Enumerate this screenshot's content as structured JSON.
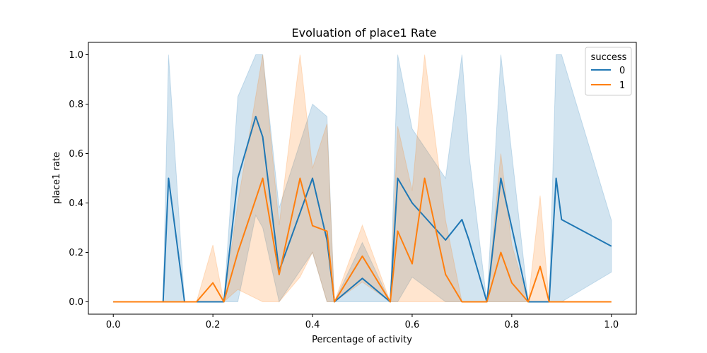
{
  "chart_data": {
    "type": "line",
    "title": "Evoluation of place1 Rate",
    "xlabel": "Percentage of activity",
    "ylabel": "place1 rate",
    "xlim": [
      -0.05,
      1.05
    ],
    "ylim": [
      -0.05,
      1.05
    ],
    "xticks": [
      0.0,
      0.2,
      0.4,
      0.6,
      0.8,
      1.0
    ],
    "xtick_labels": [
      "0.0",
      "0.2",
      "0.4",
      "0.6",
      "0.8",
      "1.0"
    ],
    "yticks": [
      0.0,
      0.2,
      0.4,
      0.6,
      0.8,
      1.0
    ],
    "ytick_labels": [
      "0.0",
      "0.2",
      "0.4",
      "0.6",
      "0.8",
      "1.0"
    ],
    "grid": false,
    "legend": {
      "title": "success",
      "placement": "upper right"
    },
    "series": [
      {
        "name": "0",
        "color": "#1f77b4",
        "x": [
          0.0,
          0.1,
          0.111,
          0.143,
          0.2,
          0.222,
          0.25,
          0.286,
          0.3,
          0.333,
          0.4,
          0.429,
          0.444,
          0.5,
          0.556,
          0.571,
          0.6,
          0.667,
          0.7,
          0.714,
          0.75,
          0.778,
          0.8,
          0.833,
          0.857,
          0.875,
          0.889,
          0.9,
          1.0
        ],
        "y": [
          0.0,
          0.0,
          0.5,
          0.0,
          0.0,
          0.0,
          0.5,
          0.75,
          0.667,
          0.125,
          0.5,
          0.25,
          0.0,
          0.095,
          0.0,
          0.5,
          0.4,
          0.25,
          0.333,
          0.25,
          0.0,
          0.5,
          0.3,
          0.0,
          0.0,
          0.0,
          0.5,
          0.333,
          0.225
        ],
        "lower": [
          0.0,
          0.0,
          0.0,
          0.0,
          0.0,
          0.0,
          0.0,
          0.35,
          0.3,
          0.0,
          0.2,
          0.0,
          0.0,
          0.0,
          0.0,
          0.0,
          0.1,
          0.0,
          0.0,
          0.0,
          0.0,
          0.0,
          0.0,
          0.0,
          0.0,
          0.0,
          0.0,
          0.0,
          0.12
        ],
        "upper": [
          0.0,
          0.0,
          1.0,
          0.0,
          0.0,
          0.0,
          0.83,
          1.0,
          1.0,
          0.38,
          0.8,
          0.75,
          0.0,
          0.24,
          0.0,
          1.0,
          0.7,
          0.5,
          1.0,
          0.6,
          0.0,
          1.0,
          0.6,
          0.0,
          0.0,
          0.0,
          1.0,
          1.0,
          0.33
        ]
      },
      {
        "name": "1",
        "color": "#ff7f0e",
        "x": [
          0.0,
          0.167,
          0.2,
          0.222,
          0.25,
          0.3,
          0.333,
          0.375,
          0.4,
          0.429,
          0.444,
          0.5,
          0.556,
          0.571,
          0.6,
          0.625,
          0.667,
          0.7,
          0.75,
          0.778,
          0.8,
          0.833,
          0.857,
          0.875,
          1.0
        ],
        "y": [
          0.0,
          0.0,
          0.077,
          0.0,
          0.2,
          0.5,
          0.11,
          0.5,
          0.308,
          0.286,
          0.0,
          0.185,
          0.0,
          0.286,
          0.154,
          0.5,
          0.111,
          0.0,
          0.0,
          0.2,
          0.077,
          0.0,
          0.143,
          0.0,
          0.0
        ],
        "lower": [
          0.0,
          0.0,
          0.0,
          0.0,
          0.05,
          0.0,
          0.0,
          0.1,
          0.2,
          0.0,
          0.0,
          0.08,
          0.0,
          0.0,
          0.0,
          0.0,
          0.0,
          0.0,
          0.0,
          0.0,
          0.0,
          0.0,
          0.0,
          0.0,
          0.0
        ],
        "upper": [
          0.0,
          0.0,
          0.23,
          0.0,
          0.4,
          1.0,
          0.31,
          1.0,
          0.54,
          0.72,
          0.0,
          0.31,
          0.0,
          0.71,
          0.45,
          1.0,
          0.33,
          0.0,
          0.0,
          0.6,
          0.23,
          0.0,
          0.43,
          0.0,
          0.0
        ]
      }
    ]
  }
}
